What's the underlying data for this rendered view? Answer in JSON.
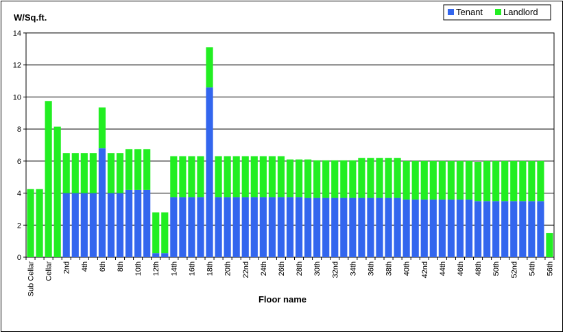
{
  "chart_data": {
    "type": "bar",
    "stacked": true,
    "ylabel": "W/Sq.ft.",
    "xlabel": "Floor name",
    "ylim": [
      0,
      14
    ],
    "yticks": [
      0,
      2,
      4,
      6,
      8,
      10,
      12,
      14
    ],
    "grid": true,
    "legend_position": "top-right",
    "categories": [
      "Sub Cellar",
      "",
      "Cellar",
      "",
      "2nd",
      "",
      "4th",
      "",
      "6th",
      "",
      "8th",
      "",
      "10th",
      "",
      "12th",
      "",
      "14th",
      "",
      "16th",
      "",
      "18th",
      "",
      "20th",
      "",
      "22nd",
      "",
      "24th",
      "",
      "26th",
      "",
      "28th",
      "",
      "30th",
      "",
      "32nd",
      "",
      "34th",
      "",
      "36th",
      "",
      "38th",
      "",
      "40th",
      "",
      "42nd",
      "",
      "44th",
      "",
      "46th",
      "",
      "48th",
      "",
      "50th",
      "",
      "52nd",
      "",
      "54th",
      "",
      "56th"
    ],
    "series": [
      {
        "name": "Tenant",
        "color": "#3366ee",
        "values": [
          0,
          0,
          0,
          0,
          4.0,
          4.0,
          4.0,
          4.0,
          6.8,
          4.0,
          4.0,
          4.2,
          4.2,
          4.2,
          0.25,
          0.25,
          3.75,
          3.75,
          3.75,
          3.75,
          10.6,
          3.75,
          3.75,
          3.75,
          3.75,
          3.75,
          3.75,
          3.75,
          3.75,
          3.75,
          3.75,
          3.7,
          3.7,
          3.7,
          3.7,
          3.7,
          3.7,
          3.7,
          3.7,
          3.7,
          3.7,
          3.7,
          3.6,
          3.6,
          3.6,
          3.6,
          3.6,
          3.6,
          3.6,
          3.6,
          3.5,
          3.5,
          3.5,
          3.5,
          3.5,
          3.5,
          3.5,
          3.5,
          0
        ]
      },
      {
        "name": "Landlord",
        "color": "#22ee22",
        "values": [
          4.25,
          4.25,
          9.75,
          8.15,
          2.5,
          2.5,
          2.5,
          2.5,
          2.55,
          2.5,
          2.5,
          2.55,
          2.55,
          2.55,
          2.55,
          2.55,
          2.55,
          2.55,
          2.55,
          2.55,
          2.5,
          2.55,
          2.55,
          2.55,
          2.55,
          2.55,
          2.55,
          2.55,
          2.55,
          2.35,
          2.35,
          2.4,
          2.35,
          2.35,
          2.35,
          2.35,
          2.35,
          2.5,
          2.5,
          2.5,
          2.5,
          2.5,
          2.4,
          2.4,
          2.4,
          2.4,
          2.4,
          2.4,
          2.4,
          2.4,
          2.45,
          2.5,
          2.5,
          2.5,
          2.5,
          2.5,
          2.5,
          2.5,
          1.5
        ]
      }
    ]
  }
}
